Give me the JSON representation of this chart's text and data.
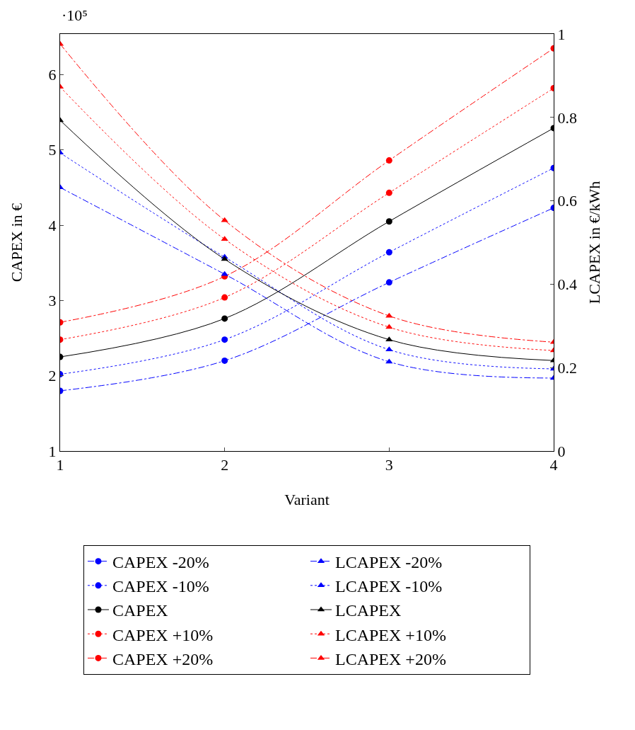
{
  "chart_data": {
    "type": "line",
    "xlabel": "Variant",
    "ylabel": "CAPEX in €",
    "y2label": "LCAPEX in €/kWh",
    "annotations": [
      "·10⁵"
    ],
    "x": [
      1,
      2,
      3,
      4
    ],
    "xlim": [
      1,
      4
    ],
    "xticks": [
      1,
      2,
      3,
      4
    ],
    "ylim": [
      1,
      6.54
    ],
    "yticks": [
      1,
      2,
      3,
      4,
      5,
      6
    ],
    "y2lim": [
      0,
      1
    ],
    "y2ticks": [
      0,
      0.2,
      0.4,
      0.6,
      0.8,
      1
    ],
    "grid": false,
    "legend": "bottom",
    "series": [
      {
        "name": "CAPEX -20%",
        "color": "#0000ff",
        "marker": "circle",
        "line_style": "dashed",
        "values": [
          1.8,
          2.2,
          3.24,
          4.23
        ]
      },
      {
        "name": "LCAPEX -20%",
        "color": "#0000ff",
        "marker": "triangle",
        "line_style": "dashed",
        "axis": "y2",
        "values": [
          0.632,
          0.424,
          0.214,
          0.175
        ]
      },
      {
        "name": "CAPEX -10%",
        "color": "#0000ff",
        "marker": "circle",
        "line_style": "dotted",
        "values": [
          2.02,
          2.48,
          3.64,
          4.76
        ]
      },
      {
        "name": "LCAPEX -10%",
        "color": "#0000ff",
        "marker": "triangle",
        "line_style": "dotted",
        "axis": "y2",
        "values": [
          0.715,
          0.465,
          0.243,
          0.197
        ]
      },
      {
        "name": "CAPEX",
        "color": "#000000",
        "marker": "circle",
        "line_style": "solid",
        "values": [
          2.25,
          2.76,
          4.05,
          5.29
        ]
      },
      {
        "name": "LCAPEX",
        "color": "#000000",
        "marker": "triangle",
        "line_style": "solid",
        "axis": "y2",
        "values": [
          0.793,
          0.46,
          0.267,
          0.217
        ]
      },
      {
        "name": "CAPEX +10%",
        "color": "#ff0000",
        "marker": "circle",
        "line_style": "dotted",
        "values": [
          2.48,
          3.04,
          4.43,
          5.82
        ]
      },
      {
        "name": "LCAPEX +10%",
        "color": "#ff0000",
        "marker": "triangle",
        "line_style": "dotted",
        "axis": "y2",
        "values": [
          0.873,
          0.508,
          0.297,
          0.241
        ]
      },
      {
        "name": "CAPEX +20%",
        "color": "#ff0000",
        "marker": "circle",
        "line_style": "dashed",
        "values": [
          2.71,
          3.32,
          4.86,
          6.35
        ]
      },
      {
        "name": "LCAPEX +20%",
        "color": "#ff0000",
        "marker": "triangle",
        "line_style": "dashed",
        "axis": "y2",
        "values": [
          0.976,
          0.553,
          0.324,
          0.261
        ]
      }
    ]
  }
}
